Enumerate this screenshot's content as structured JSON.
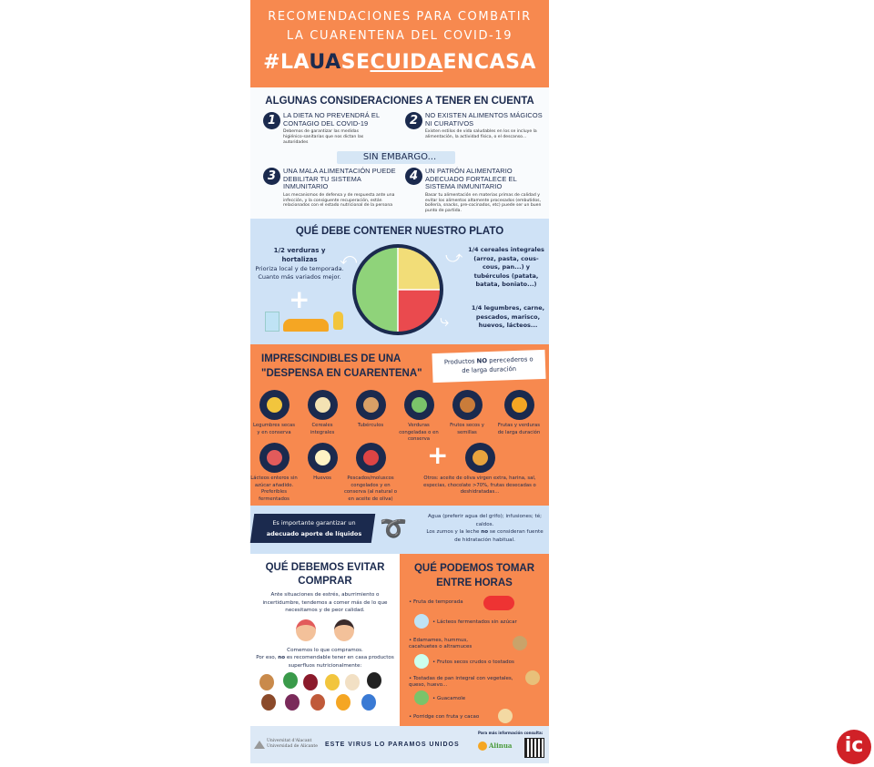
{
  "header": {
    "line1": "RECOMENDACIONES PARA COMBATIR",
    "line2": "LA CUARENTENA DEL COVID-19",
    "hashtag": {
      "p1": "#LA",
      "p2": "UA",
      "p3": "SE",
      "p4": "CUIDA",
      "p5": "ENCASA"
    }
  },
  "considerations": {
    "title": "ALGUNAS CONSIDERACIONES A TENER EN CUENTA",
    "separator": "SIN EMBARGO...",
    "items": [
      {
        "num": "1",
        "title": "LA DIETA NO PREVENDRÁ EL CONTAGIO DEL COVID-19",
        "text": "Debemos de garantizar las medidas higiénico-sanitarias que nos dictan las autoridades"
      },
      {
        "num": "2",
        "title": "NO EXISTEN ALIMENTOS MÁGICOS NI CURATIVOS",
        "text": "Existen estilos de vida saludables en los se incluye la alimentación, la actividad física, o el descanso..."
      },
      {
        "num": "3",
        "title": "UNA MALA ALIMENTACIÓN PUEDE DEBILITAR TU SISTEMA INMUNITARIO",
        "text": "Los mecanismos de defensa y de respuesta ante una infección, y la consiguente recuperación, están relacionados con el estado nutricional de la persona"
      },
      {
        "num": "4",
        "title": "UN PATRÓN ALIMENTARIO ADECUADO FORTALECE EL SISTEMA INMUNITARIO",
        "text": "Basar tu alimentación en materias primas de calidad y evitar los alimentos altamente procesados (embutidos, bollería, snacks, pre-cocinados, etc) puede ser un buen punto de partida."
      }
    ]
  },
  "plate": {
    "title": "QUÉ DEBE CONTENER NUESTRO PLATO",
    "half_title": "1/2 verduras y hortalizas",
    "half_text": "Prioriza local y de temporada. Cuanto más variados mejor.",
    "quarter1": "1/4 cereales integrales (arroz, pasta, cous-cous, pan...) y tubérculos (patata, batata, boniato...)",
    "quarter2": "1/4 legumbres, carne, pescados, marisco, huevos, lácteos...",
    "colors": {
      "half": "#8fd37a",
      "quarter1": "#f2dd78",
      "quarter2": "#ea4a4e"
    }
  },
  "pantry": {
    "title1": "IMPRESCINDIBLES DE UNA",
    "title2": "\"DESPENSA EN CUARENTENA\"",
    "note_pre": "Productos ",
    "note_bold": "NO",
    "note_post": " perecederos o de larga duración",
    "items": [
      "Legumbres secas y en conserva",
      "Cereales integrales",
      "Tubérculos",
      "Verduras congeladas o en conserva",
      "Frutos secos y semillas",
      "Frutas y verduras de larga duración",
      "Lácteos enteros sin azúcar añadido. Preferibles fermentados",
      "Huevos",
      "Pescados/moluscos congelados y en conserva (al natural o en aceite de oliva)",
      "Otros: aceite de oliva virgen extra, harina, sal, especias, chocolate >70%, frutas desecadas o deshidratadas..."
    ],
    "plus": "+"
  },
  "liquids": {
    "brush1": "Es importante garantizar un",
    "brush2": "adecuado aporte de líquidos",
    "text1": "Agua (preferir agua del grifo); infusiones; té; caldos.",
    "text2_pre": "Los zumos y la leche ",
    "text2_bold": "no",
    "text2_post": " se consideran fuente de hidratación habitual."
  },
  "avoid": {
    "title": "QUÉ DEBEMOS EVITAR COMPRAR",
    "text1": "Ante situaciones de estrés, aburrimiento o incertidumbre, tendemos a comer más de lo que necesitamos y de peor calidad.",
    "text2": "Comemos lo que compramos.",
    "text3_pre": "Por eso, ",
    "text3_bold": "no",
    "text3_post": " es recomendable tener en casa productos superfluos nutricionalmente:"
  },
  "snacks": {
    "title": "QUÉ PODEMOS TOMAR ENTRE HORAS",
    "items": [
      "Fruta de temporada",
      "Lácteos fermentados sin azúcar",
      "Edamames, hummus, cacahuetes o altramuces",
      "Frutos secos crudos o tostados",
      "Tostadas de pan integral con vegetales, queso, huevo...",
      "Guacamole",
      "Porridge con fruta y cacao"
    ]
  },
  "footer": {
    "university1": "Universitat d'Alacant",
    "university2": "Universidad de Alicante",
    "slogan": "ESTE VIRUS LO PARAMOS UNIDOS",
    "more_info": "Para más información consulta:",
    "alinua": "Alinua"
  },
  "site_logo": "ic"
}
